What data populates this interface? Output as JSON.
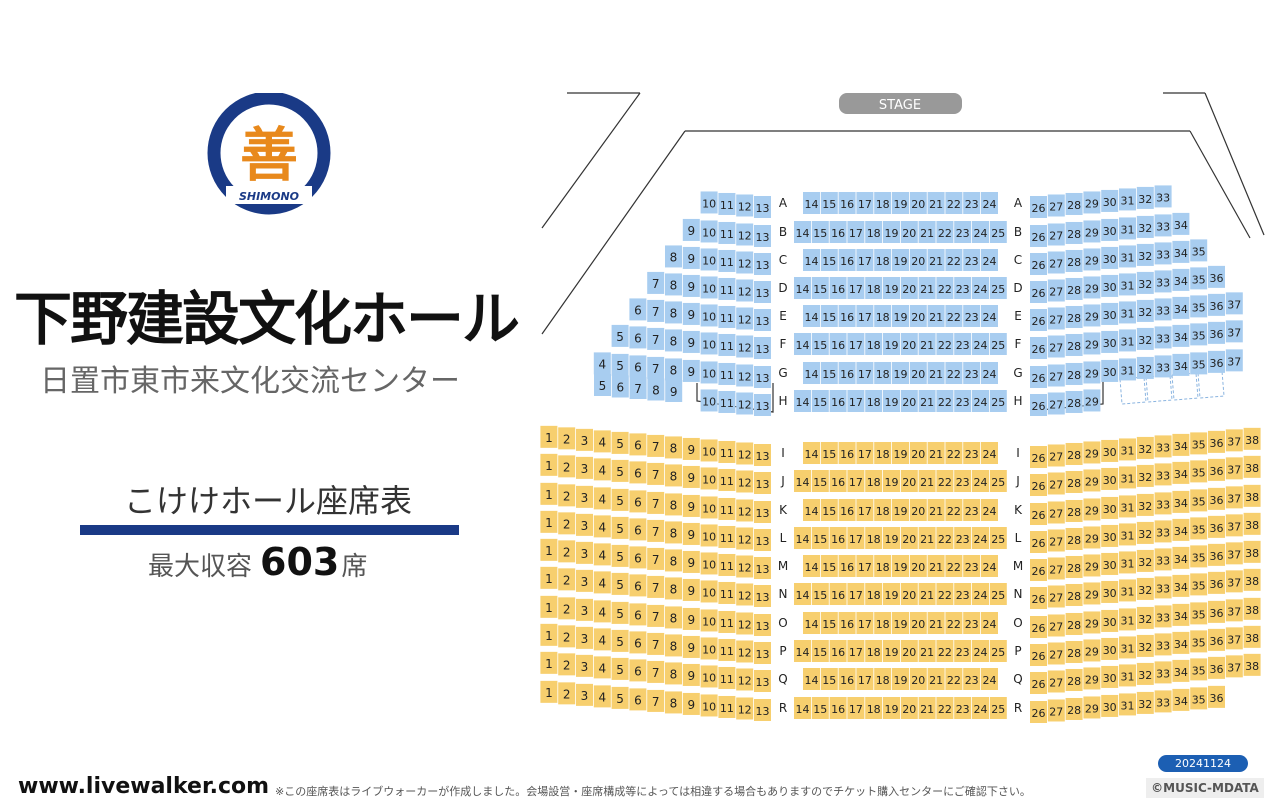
{
  "venue": {
    "logo_text": "SHIMONO",
    "logo_glyph": "善",
    "name": "下野建設文化ホール",
    "official_name": "日置市東市来文化交流センター",
    "chart_name": "こけけホール座席表",
    "capacity_label": "最大収容",
    "capacity_value": "603",
    "capacity_unit": "席"
  },
  "stage_label": "STAGE",
  "footer": {
    "site": "www.livewalker.com",
    "note": "※この座席表はライブウォーカーが作成しました。会場設営・座席構成等によっては相違する場合もありますのでチケット購入センターにご確認下さい。",
    "date": "20241124",
    "copyright": "©MUSIC-MDATA"
  },
  "colors": {
    "upper_seat": "#a8cdf0",
    "lower_seat": "#f7cf6e",
    "brand_blue": "#1a3a86",
    "logo_orange": "#e8891c"
  },
  "sections": [
    {
      "block": "upper",
      "rows": [
        {
          "row": "A",
          "left": [
            10,
            13
          ],
          "center": [
            14,
            24
          ],
          "right": [
            26,
            33
          ]
        },
        {
          "row": "B",
          "left": [
            9,
            13
          ],
          "center": [
            14,
            25
          ],
          "right": [
            26,
            34
          ]
        },
        {
          "row": "C",
          "left": [
            8,
            13
          ],
          "center": [
            14,
            24
          ],
          "right": [
            26,
            35
          ]
        },
        {
          "row": "D",
          "left": [
            7,
            13
          ],
          "center": [
            14,
            25
          ],
          "right": [
            26,
            36
          ]
        },
        {
          "row": "E",
          "left": [
            6,
            13
          ],
          "center": [
            14,
            24
          ],
          "right": [
            26,
            37
          ]
        },
        {
          "row": "F",
          "left": [
            5,
            13
          ],
          "center": [
            14,
            25
          ],
          "right": [
            26,
            37
          ]
        },
        {
          "row": "G",
          "left": [
            4,
            13
          ],
          "center": [
            14,
            24
          ],
          "right": [
            26,
            37
          ]
        },
        {
          "row": "H",
          "far_left": [
            5,
            9
          ],
          "left": [
            10,
            13
          ],
          "center": [
            14,
            25
          ],
          "right": [
            26,
            29
          ]
        }
      ]
    },
    {
      "block": "lower",
      "rows": [
        {
          "row": "I",
          "left": [
            1,
            13
          ],
          "center": [
            14,
            24
          ],
          "right": [
            26,
            38
          ]
        },
        {
          "row": "J",
          "left": [
            1,
            13
          ],
          "center": [
            14,
            25
          ],
          "right": [
            26,
            38
          ]
        },
        {
          "row": "K",
          "left": [
            1,
            13
          ],
          "center": [
            14,
            24
          ],
          "right": [
            26,
            38
          ]
        },
        {
          "row": "L",
          "left": [
            1,
            13
          ],
          "center": [
            14,
            25
          ],
          "right": [
            26,
            38
          ]
        },
        {
          "row": "M",
          "left": [
            1,
            13
          ],
          "center": [
            14,
            24
          ],
          "right": [
            26,
            38
          ]
        },
        {
          "row": "N",
          "left": [
            1,
            13
          ],
          "center": [
            14,
            25
          ],
          "right": [
            26,
            38
          ]
        },
        {
          "row": "O",
          "left": [
            1,
            13
          ],
          "center": [
            14,
            24
          ],
          "right": [
            26,
            38
          ]
        },
        {
          "row": "P",
          "left": [
            1,
            13
          ],
          "center": [
            14,
            25
          ],
          "right": [
            26,
            38
          ]
        },
        {
          "row": "Q",
          "left": [
            1,
            13
          ],
          "center": [
            14,
            24
          ],
          "right": [
            26,
            38
          ]
        },
        {
          "row": "R",
          "left": [
            1,
            13
          ],
          "center": [
            14,
            25
          ],
          "right": [
            26,
            36
          ]
        }
      ]
    }
  ]
}
